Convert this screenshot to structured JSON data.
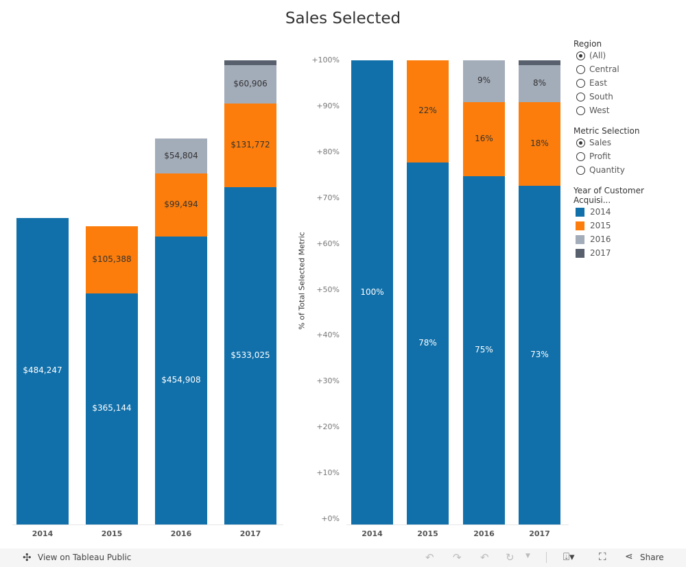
{
  "title": "Sales Selected",
  "colors": {
    "2014": "#1170aa",
    "2015": "#fc7d0b",
    "2016": "#a3acb9",
    "2017": "#57606c"
  },
  "chart_data": [
    {
      "type": "bar",
      "stacked": true,
      "categories": [
        "2014",
        "2015",
        "2016",
        "2017"
      ],
      "series": [
        {
          "name": "2014",
          "values": [
            484247,
            365144,
            454908,
            533025
          ],
          "labels": [
            "$484,247",
            "$365,144",
            "$454,908",
            "$533,025"
          ]
        },
        {
          "name": "2015",
          "values": [
            0,
            105388,
            99494,
            131772
          ],
          "labels": [
            "",
            "$105,388",
            "$99,494",
            "$131,772"
          ]
        },
        {
          "name": "2016",
          "values": [
            0,
            0,
            54804,
            60906
          ],
          "labels": [
            "",
            "",
            "$54,804",
            "$60,906"
          ]
        },
        {
          "name": "2017",
          "values": [
            0,
            0,
            0,
            7500
          ],
          "labels": [
            "",
            "",
            "",
            ""
          ]
        }
      ],
      "ylim": [
        0,
        733000
      ]
    },
    {
      "type": "bar",
      "stacked": true,
      "categories": [
        "2014",
        "2015",
        "2016",
        "2017"
      ],
      "ylabel": "% of Total Selected Metric",
      "yticks": [
        "+0%",
        "+10%",
        "+20%",
        "+30%",
        "+40%",
        "+50%",
        "+60%",
        "+70%",
        "+80%",
        "+90%",
        "+100%"
      ],
      "series": [
        {
          "name": "2014",
          "values": [
            100,
            78,
            75,
            73
          ],
          "labels": [
            "100%",
            "78%",
            "75%",
            "73%"
          ]
        },
        {
          "name": "2015",
          "values": [
            0,
            22,
            16,
            18
          ],
          "labels": [
            "",
            "22%",
            "16%",
            "18%"
          ]
        },
        {
          "name": "2016",
          "values": [
            0,
            0,
            9,
            8
          ],
          "labels": [
            "",
            "",
            "9%",
            "8%"
          ]
        },
        {
          "name": "2017",
          "values": [
            0,
            0,
            0,
            1
          ],
          "labels": [
            "",
            "",
            "",
            ""
          ]
        }
      ],
      "ylim": [
        0,
        100
      ]
    }
  ],
  "filters": {
    "region": {
      "title": "Region",
      "options": [
        "(All)",
        "Central",
        "East",
        "South",
        "West"
      ],
      "selected": 0
    },
    "metric": {
      "title": "Metric Selection",
      "options": [
        "Sales",
        "Profit",
        "Quantity"
      ],
      "selected": 0
    },
    "legend": {
      "title": "Year of Customer Acquisi...",
      "items": [
        "2014",
        "2015",
        "2016",
        "2017"
      ]
    }
  },
  "footer": {
    "view_label": "View on Tableau Public",
    "share_label": "Share"
  }
}
